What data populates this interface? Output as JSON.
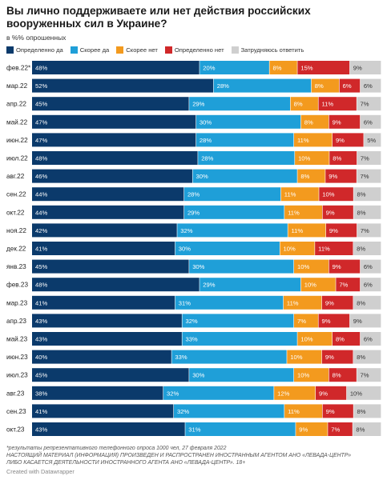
{
  "header": {
    "title": "Вы лично поддерживаете или нет действия российских вооруженных сил в Украине?",
    "subtitle": "в %% опрошенных"
  },
  "footer": {
    "note_line1": "*результаты репрезентативного телефонного опроса 1000 чел, 27 февраля 2022",
    "note_line2": "НАСТОЯЩИЙ МАТЕРИАЛ (ИНФОРМАЦИЯ) ПРОИЗВЕДЕН И РАСПРОСТРАНЕН ИНОСТРАННЫМ АГЕНТОМ АНО «ЛЕВАДА-ЦЕНТР»",
    "note_line3": "ЛИБО КАСАЕТСЯ ДЕЯТЕЛЬНОСТИ ИНОСТРАННОГО АГЕНТА АНО «ЛЕВАДА-ЦЕНТР». 18+",
    "credit": "Created with Datawrapper"
  },
  "chart_data": {
    "type": "bar",
    "orientation": "horizontal",
    "stacked": true,
    "title": "Вы лично поддерживаете или нет действия российских вооруженных сил в Украине?",
    "subtitle": "в %% опрошенных",
    "xlim": [
      0,
      100
    ],
    "grid": false,
    "legend_position": "top",
    "categories": [
      "фев.22*",
      "мар.22",
      "апр.22",
      "май.22",
      "июн.22",
      "июл.22",
      "авг.22",
      "сен.22",
      "окт.22",
      "ноя.22",
      "дек.22",
      "янв.23",
      "фев.23",
      "мар.23",
      "апр.23",
      "май.23",
      "июн.23",
      "июл.23",
      "авг.23",
      "сен.23",
      "окт.23"
    ],
    "series": [
      {
        "name": "Определенно да",
        "color": "#0b3a6b",
        "values": [
          48,
          52,
          45,
          47,
          47,
          48,
          46,
          44,
          44,
          42,
          41,
          45,
          48,
          41,
          43,
          43,
          40,
          45,
          38,
          41,
          43
        ]
      },
      {
        "name": "Скорее да",
        "color": "#1f9fd8",
        "values": [
          20,
          28,
          29,
          30,
          28,
          28,
          30,
          28,
          29,
          32,
          30,
          30,
          29,
          31,
          32,
          33,
          33,
          30,
          32,
          32,
          31
        ]
      },
      {
        "name": "Скорее нет",
        "color": "#f39a1e",
        "values": [
          8,
          8,
          8,
          8,
          11,
          10,
          8,
          11,
          11,
          11,
          10,
          10,
          10,
          11,
          7,
          10,
          10,
          10,
          12,
          11,
          9
        ]
      },
      {
        "name": "Определенно нет",
        "color": "#d0282a",
        "values": [
          15,
          6,
          11,
          9,
          9,
          8,
          9,
          10,
          9,
          9,
          11,
          9,
          7,
          9,
          9,
          8,
          9,
          8,
          9,
          9,
          7
        ]
      },
      {
        "name": "Затрудняюсь ответить",
        "color": "#cfcfcf",
        "values": [
          9,
          6,
          7,
          6,
          5,
          7,
          7,
          8,
          8,
          7,
          8,
          6,
          6,
          8,
          9,
          6,
          8,
          7,
          10,
          8,
          8
        ]
      }
    ]
  }
}
